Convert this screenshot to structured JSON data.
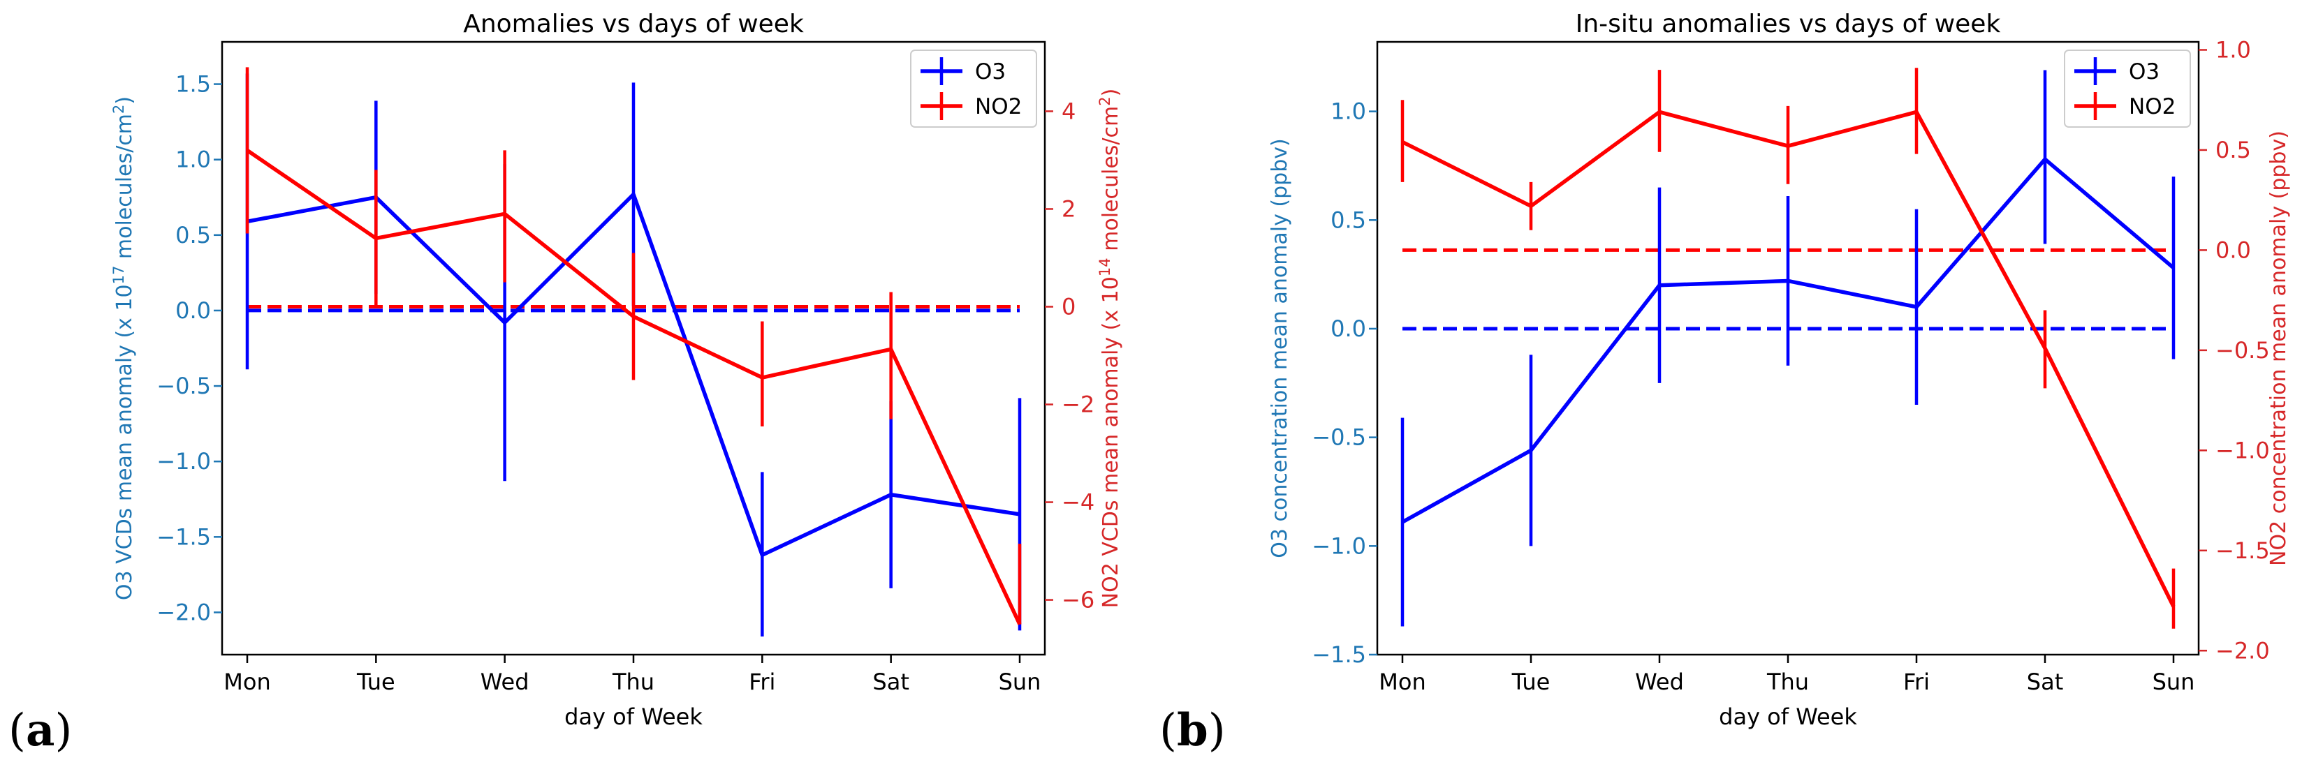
{
  "panels": [
    {
      "label_prefix": "(",
      "label_letter": "a",
      "label_suffix": ")"
    },
    {
      "label_prefix": "(",
      "label_letter": "b",
      "label_suffix": ")"
    }
  ],
  "colors": {
    "o3": "#0000ff",
    "no2": "#ff0000",
    "o3_axis": "#1f77b4",
    "no2_axis": "#d62728"
  },
  "chart_data": [
    {
      "type": "line",
      "title": "Anomalies vs days of week",
      "xlabel": "day of Week",
      "ylabel_left": "O3 VCDs mean anomaly (x 10",
      "ylabel_left_exp": "17",
      "ylabel_left_tail": " molecules/cm",
      "ylabel_left_tail_exp": "2",
      "ylabel_left_end": ")",
      "ylabel_right": "NO2 VCDs mean anomaly (x 10",
      "ylabel_right_exp": "14",
      "ylabel_right_tail": " molecules/cm",
      "ylabel_right_tail_exp": "2",
      "ylabel_right_end": ")",
      "categories": [
        "Mon",
        "Tue",
        "Wed",
        "Thu",
        "Fri",
        "Sat",
        "Sun"
      ],
      "ylim_left": [
        -2.28,
        1.78
      ],
      "ylim_right": [
        -7.12,
        5.42
      ],
      "yticks_left": [
        "1.5",
        "1.0",
        "0.5",
        "0.0",
        "−0.5",
        "−1.0",
        "−1.5",
        "−2.0"
      ],
      "yticks_left_values": [
        1.5,
        1.0,
        0.5,
        0.0,
        -0.5,
        -1.0,
        -1.5,
        -2.0
      ],
      "yticks_right": [
        "4",
        "2",
        "0",
        "−2",
        "−4",
        "−6"
      ],
      "yticks_right_values": [
        4,
        2,
        0,
        -2,
        -4,
        -6
      ],
      "legend": [
        "O3",
        "NO2"
      ],
      "legend_position": "top-right",
      "series": [
        {
          "name": "O3",
          "axis": "left",
          "values": [
            0.59,
            0.75,
            -0.08,
            0.77,
            -1.62,
            -1.22,
            -1.35
          ],
          "err_low": [
            -0.39,
            0.11,
            -1.13,
            0.03,
            -2.16,
            -1.84,
            -2.12
          ],
          "err_high": [
            1.57,
            1.39,
            0.97,
            1.51,
            -1.07,
            -0.6,
            -0.58
          ]
        },
        {
          "name": "NO2",
          "axis": "right",
          "values": [
            3.2,
            1.4,
            1.9,
            -0.2,
            -1.45,
            -0.87,
            -6.5
          ],
          "err_low": [
            1.5,
            0.0,
            0.5,
            -1.5,
            -2.45,
            -2.3,
            -6.5
          ],
          "err_high": [
            4.9,
            2.8,
            3.2,
            1.1,
            -0.3,
            0.3,
            -4.85
          ]
        }
      ],
      "baselines": [
        {
          "series": "O3",
          "axis": "left",
          "value": 0.0
        },
        {
          "series": "NO2",
          "axis": "right",
          "value": 0.0
        }
      ]
    },
    {
      "type": "line",
      "title": "In-situ anomalies vs days of week",
      "xlabel": "day of Week",
      "ylabel_left": "O3 concentration mean anomaly (ppbv)",
      "ylabel_right": "NO2 concentration mean anomaly (ppbv)",
      "categories": [
        "Mon",
        "Tue",
        "Wed",
        "Thu",
        "Fri",
        "Sat",
        "Sun"
      ],
      "ylim_left": [
        -1.5,
        1.32
      ],
      "ylim_right": [
        -2.02,
        1.04
      ],
      "yticks_left": [
        "1.0",
        "0.5",
        "0.0",
        "−0.5",
        "−1.0",
        "−1.5"
      ],
      "yticks_left_values": [
        1.0,
        0.5,
        0.0,
        -0.5,
        -1.0,
        -1.5
      ],
      "yticks_right": [
        "1.0",
        "0.5",
        "0.0",
        "−0.5",
        "−1.0",
        "−1.5",
        "−2.0"
      ],
      "yticks_right_values": [
        1.0,
        0.5,
        0.0,
        -0.5,
        -1.0,
        -1.5,
        -2.0
      ],
      "legend": [
        "O3",
        "NO2"
      ],
      "legend_position": "top-right",
      "series": [
        {
          "name": "O3",
          "axis": "left",
          "values": [
            -0.89,
            -0.56,
            0.2,
            0.22,
            0.1,
            0.78,
            0.28
          ],
          "err_low": [
            -1.37,
            -1.0,
            -0.25,
            -0.17,
            -0.35,
            0.39,
            -0.14
          ],
          "err_high": [
            -0.41,
            -0.12,
            0.65,
            0.61,
            0.55,
            1.19,
            0.7
          ]
        },
        {
          "name": "NO2",
          "axis": "right",
          "values": [
            0.54,
            0.22,
            0.69,
            0.52,
            0.69,
            -0.49,
            -1.78
          ],
          "err_low": [
            0.34,
            0.1,
            0.49,
            0.33,
            0.48,
            -0.69,
            -1.89
          ],
          "err_high": [
            0.75,
            0.34,
            0.9,
            0.72,
            0.91,
            -0.3,
            -1.59
          ]
        }
      ],
      "baselines": [
        {
          "series": "O3",
          "axis": "left",
          "value": 0.0
        },
        {
          "series": "NO2",
          "axis": "right",
          "value": 0.0
        }
      ]
    }
  ]
}
